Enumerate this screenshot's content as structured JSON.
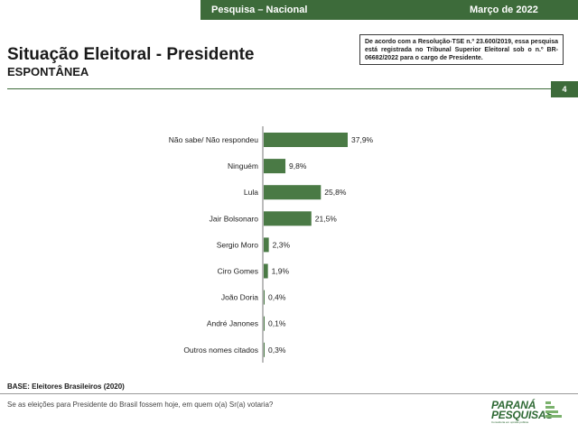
{
  "header": {
    "survey_label": "Pesquisa – Nacional",
    "date_label": "Março de 2022",
    "accent_color": "#3d6b3a"
  },
  "title": "Situação Eleitoral - Presidente",
  "subtitle": "ESPONTÂNEA",
  "tse_notice": "De acordo com a Resolução-TSE n.º 23.600/2019, essa pesquisa está registrada no Tribunal Superior Eleitoral sob o n.º BR-06682/2022 para o cargo de Presidente.",
  "page_number": "4",
  "chart_data": {
    "type": "bar",
    "orientation": "horizontal",
    "categories": [
      "Não sabe/ Não respondeu",
      "Ninguém",
      "Lula",
      "Jair Bolsonaro",
      "Sergio Moro",
      "Ciro Gomes",
      "João Doria",
      "André Janones",
      "Outros nomes citados"
    ],
    "values": [
      37.9,
      9.8,
      25.8,
      21.5,
      2.3,
      1.9,
      0.4,
      0.1,
      0.3
    ],
    "value_labels": [
      "37,9%",
      "9,8%",
      "25,8%",
      "21,5%",
      "2,3%",
      "1,9%",
      "0,4%",
      "0,1%",
      "0,3%"
    ],
    "xlim": [
      0,
      40
    ],
    "bar_color": "#4a7a45",
    "grid": false
  },
  "footer": {
    "base": "BASE: Eleitores Brasileiros (2020)",
    "question": "Se as eleições para Presidente do Brasil fossem hoje, em quem o(a) Sr(a) votaria?",
    "logo_line1": "PARANÁ",
    "logo_line2": "PESQUISAS",
    "logo_tagline": "Consultoria em opinião pública",
    "logo_color": "#2f6a35"
  }
}
